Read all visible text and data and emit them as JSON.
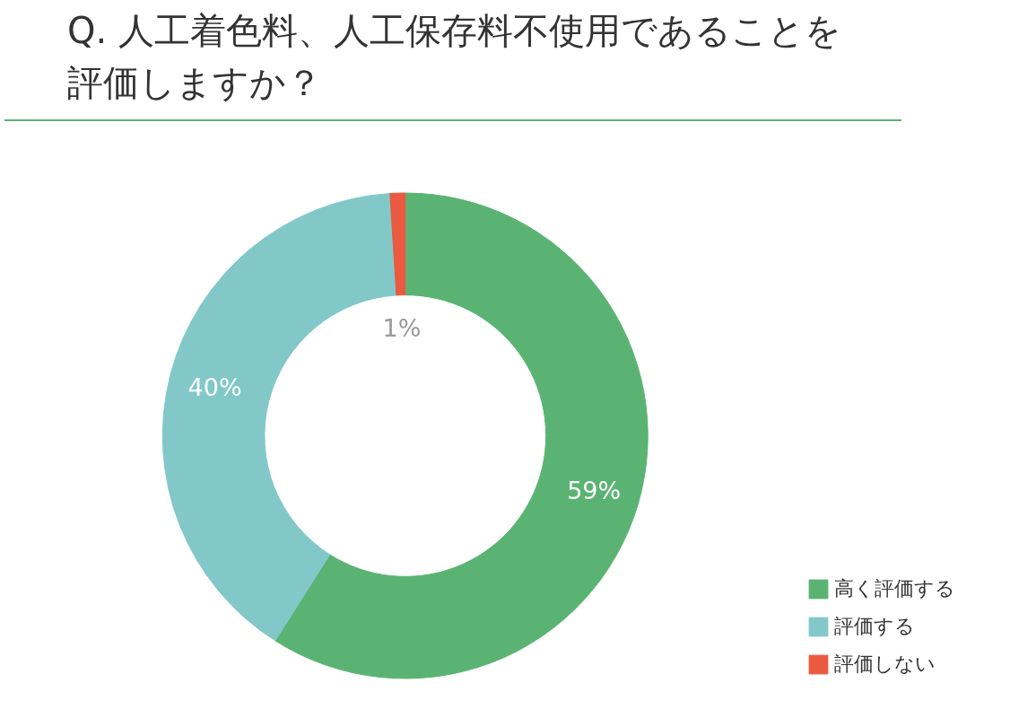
{
  "chart_data": {
    "type": "donut",
    "title": "Q. 人工着色料、人工保存料不使用であることを評価しますか？",
    "categories": [
      "高く評価する",
      "評価する",
      "評価しない"
    ],
    "values": [
      59,
      40,
      1
    ],
    "colors": [
      "#5ab372",
      "#82c8c9",
      "#e95a40"
    ],
    "value_labels": [
      "59%",
      "40%",
      "1%"
    ],
    "legend": "bottom right"
  }
}
